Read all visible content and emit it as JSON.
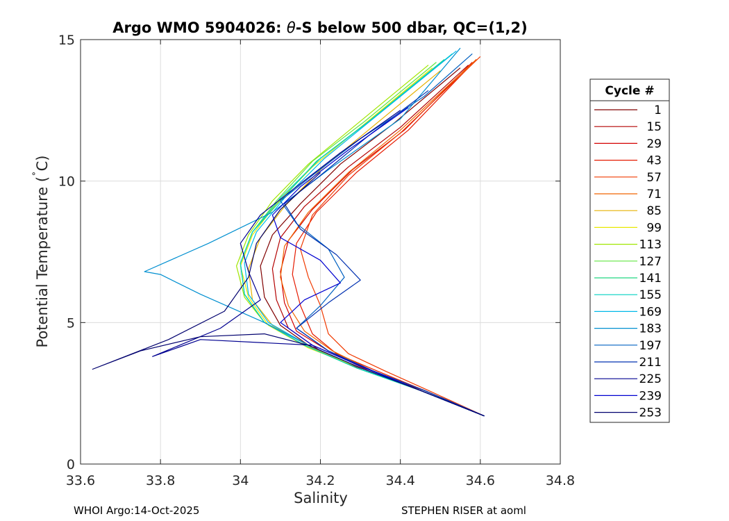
{
  "chart_data": {
    "type": "line",
    "title_prefix": "Argo WMO 5904026: ",
    "title_theta": "θ",
    "title_suffix": "-S below 500 dbar,  QC=(1,2)",
    "xlabel": "Salinity",
    "ylabel_main": "Potential Temperature (",
    "ylabel_deg": "˚",
    "ylabel_end": "C)",
    "xlim": [
      33.6,
      34.8
    ],
    "ylim": [
      0,
      15
    ],
    "x_ticks": [
      33.6,
      33.8,
      34,
      34.2,
      34.4,
      34.6,
      34.8
    ],
    "x_tick_labels": [
      "33.6",
      "33.8",
      "34",
      "34.2",
      "34.4",
      "34.6",
      "34.8"
    ],
    "y_ticks": [
      0,
      5,
      10,
      15
    ],
    "y_tick_labels": [
      "0",
      "5",
      "10",
      "15"
    ],
    "grid": true,
    "legend_title": "Cycle #",
    "legend_position": "outside-right",
    "series": [
      {
        "name": "1",
        "color": "#800000",
        "x": [
          34.61,
          34.45,
          34.3,
          34.18,
          34.1,
          34.06,
          34.05,
          34.08,
          34.15,
          34.25,
          34.38,
          34.55
        ],
        "y": [
          1.7,
          2.6,
          3.4,
          4.1,
          4.9,
          5.9,
          7.0,
          8.1,
          9.2,
          10.6,
          12.0,
          14.0
        ]
      },
      {
        "name": "15",
        "color": "#b30000",
        "x": [
          34.61,
          34.46,
          34.31,
          34.2,
          34.12,
          34.09,
          34.08,
          34.1,
          34.16,
          34.27,
          34.4,
          34.57
        ],
        "y": [
          1.7,
          2.6,
          3.3,
          4.0,
          4.8,
          5.8,
          6.9,
          8.0,
          9.1,
          10.5,
          11.9,
          14.1
        ]
      },
      {
        "name": "29",
        "color": "#d40000",
        "x": [
          34.61,
          34.45,
          34.32,
          34.22,
          34.14,
          34.11,
          34.1,
          34.12,
          34.18,
          34.28,
          34.41,
          34.58
        ],
        "y": [
          1.7,
          2.6,
          3.3,
          4.0,
          4.7,
          5.7,
          6.8,
          7.9,
          9.0,
          10.4,
          11.8,
          14.2
        ]
      },
      {
        "name": "43",
        "color": "#e51a00",
        "x": [
          34.61,
          34.46,
          34.34,
          34.24,
          34.18,
          34.15,
          34.13,
          34.14,
          34.19,
          34.29,
          34.42,
          34.59
        ],
        "y": [
          1.7,
          2.6,
          3.3,
          3.9,
          4.6,
          5.6,
          6.7,
          7.8,
          8.9,
          10.3,
          11.8,
          14.3
        ]
      },
      {
        "name": "57",
        "color": "#f03a00",
        "x": [
          34.61,
          34.47,
          34.36,
          34.27,
          34.22,
          34.2,
          34.17,
          34.15,
          34.18,
          34.27,
          34.4,
          34.6
        ],
        "y": [
          1.7,
          2.6,
          3.3,
          3.9,
          4.6,
          5.6,
          6.6,
          7.6,
          8.8,
          10.2,
          11.7,
          14.4
        ]
      },
      {
        "name": "71",
        "color": "#f06400",
        "x": [
          34.61,
          34.46,
          34.33,
          34.23,
          34.16,
          34.12,
          34.1,
          34.11,
          34.17,
          34.27,
          34.4,
          34.59
        ],
        "y": [
          1.7,
          2.6,
          3.3,
          4.0,
          4.7,
          5.6,
          6.6,
          7.7,
          8.9,
          10.3,
          11.8,
          14.3
        ]
      },
      {
        "name": "85",
        "color": "#e6b000",
        "x": [
          34.61,
          34.45,
          34.3,
          34.18,
          34.08,
          34.03,
          34.02,
          34.05,
          34.11,
          34.2,
          34.32,
          34.5
        ],
        "y": [
          1.7,
          2.6,
          3.4,
          4.1,
          4.9,
          5.8,
          6.9,
          8.0,
          9.1,
          10.4,
          11.8,
          13.9
        ]
      },
      {
        "name": "99",
        "color": "#e8e800",
        "x": [
          34.61,
          34.45,
          34.3,
          34.17,
          34.07,
          34.02,
          34.0,
          34.03,
          34.09,
          34.18,
          34.3,
          34.48
        ],
        "y": [
          1.7,
          2.6,
          3.4,
          4.1,
          4.9,
          5.9,
          7.0,
          8.1,
          9.2,
          10.5,
          11.9,
          14.0
        ]
      },
      {
        "name": "113",
        "color": "#a0e600",
        "x": [
          34.61,
          34.45,
          34.29,
          34.16,
          34.06,
          34.01,
          33.99,
          34.02,
          34.08,
          34.17,
          34.29,
          34.47
        ],
        "y": [
          1.7,
          2.6,
          3.4,
          4.2,
          5.0,
          5.9,
          7.0,
          8.1,
          9.3,
          10.6,
          12.0,
          14.1
        ]
      },
      {
        "name": "127",
        "color": "#60e640",
        "x": [
          34.61,
          34.45,
          34.29,
          34.16,
          34.06,
          34.01,
          34.0,
          34.03,
          34.09,
          34.18,
          34.31,
          34.49
        ],
        "y": [
          1.7,
          2.6,
          3.4,
          4.2,
          5.0,
          6.0,
          7.1,
          8.2,
          9.3,
          10.7,
          12.1,
          14.2
        ]
      },
      {
        "name": "141",
        "color": "#20d880",
        "x": [
          34.61,
          34.45,
          34.29,
          34.16,
          34.06,
          34.01,
          34.0,
          34.03,
          34.1,
          34.19,
          34.32,
          34.51
        ],
        "y": [
          1.7,
          2.6,
          3.4,
          4.2,
          5.0,
          6.0,
          7.1,
          8.2,
          9.3,
          10.7,
          12.1,
          14.3
        ]
      },
      {
        "name": "155",
        "color": "#00d0c0",
        "x": [
          34.61,
          34.45,
          34.29,
          34.16,
          34.06,
          34.01,
          34.0,
          34.03,
          34.1,
          34.2,
          34.33,
          34.53
        ],
        "y": [
          1.7,
          2.6,
          3.4,
          4.2,
          5.0,
          6.0,
          7.1,
          8.2,
          9.4,
          10.8,
          12.2,
          14.5
        ]
      },
      {
        "name": "169",
        "color": "#00b8e8",
        "x": [
          34.61,
          34.45,
          34.3,
          34.17,
          34.07,
          34.02,
          34.01,
          34.04,
          34.11,
          34.21,
          34.34,
          34.54
        ],
        "y": [
          1.7,
          2.6,
          3.4,
          4.2,
          5.0,
          6.0,
          7.1,
          8.2,
          9.4,
          10.8,
          12.3,
          14.6
        ]
      },
      {
        "name": "183",
        "color": "#008fd0",
        "x": [
          34.61,
          34.45,
          34.3,
          34.17,
          34.06,
          33.9,
          33.8,
          33.76,
          33.92,
          34.08,
          34.22,
          34.4,
          34.55
        ],
        "y": [
          1.7,
          2.6,
          3.4,
          4.2,
          5.0,
          6.0,
          6.7,
          6.8,
          7.8,
          8.9,
          10.4,
          12.2,
          14.7
        ]
      },
      {
        "name": "197",
        "color": "#0060c0",
        "x": [
          34.61,
          34.46,
          34.33,
          34.22,
          34.14,
          34.2,
          34.26,
          34.22,
          34.14,
          34.1,
          34.18,
          34.3,
          34.46,
          34.58
        ],
        "y": [
          1.7,
          2.6,
          3.3,
          4.0,
          4.8,
          5.6,
          6.6,
          7.6,
          8.5,
          9.3,
          10.2,
          11.5,
          13.0,
          14.5
        ]
      },
      {
        "name": "211",
        "color": "#0030b0",
        "x": [
          34.61,
          34.46,
          34.33,
          34.22,
          34.14,
          34.22,
          34.3,
          34.24,
          34.15,
          34.11,
          34.2,
          34.32,
          34.47
        ],
        "y": [
          1.7,
          2.6,
          3.3,
          4.0,
          4.8,
          5.7,
          6.5,
          7.4,
          8.3,
          9.2,
          10.2,
          11.6,
          13.2
        ]
      },
      {
        "name": "225",
        "color": "#000090",
        "x": [
          34.61,
          34.45,
          34.31,
          34.18,
          33.9,
          33.78,
          33.95,
          34.05,
          34.02,
          34.0,
          34.05,
          34.14,
          34.25,
          34.4
        ],
        "y": [
          1.7,
          2.6,
          3.4,
          4.2,
          4.4,
          3.8,
          4.8,
          5.8,
          6.8,
          7.8,
          8.8,
          9.8,
          11.0,
          12.5
        ]
      },
      {
        "name": "239",
        "color": "#0000d0",
        "x": [
          34.61,
          34.45,
          34.31,
          34.18,
          34.1,
          34.16,
          34.25,
          34.2,
          34.1,
          34.08,
          34.15,
          34.27,
          34.42
        ],
        "y": [
          1.7,
          2.6,
          3.4,
          4.2,
          5.0,
          5.8,
          6.4,
          7.2,
          8.0,
          8.8,
          9.8,
          11.1,
          12.6
        ]
      },
      {
        "name": "253",
        "color": "#00006e",
        "x": [
          34.61,
          34.45,
          34.3,
          34.17,
          34.06,
          33.9,
          33.75,
          33.63,
          33.82,
          33.96,
          34.02,
          34.04,
          34.1,
          34.2
        ],
        "y": [
          1.7,
          2.6,
          3.4,
          4.2,
          4.6,
          4.5,
          4.0,
          3.35,
          4.4,
          5.4,
          6.6,
          7.8,
          9.0,
          10.3
        ]
      }
    ]
  },
  "footer": {
    "left": "WHOI Argo:14-Oct-2025",
    "right": "STEPHEN RISER at aoml"
  }
}
